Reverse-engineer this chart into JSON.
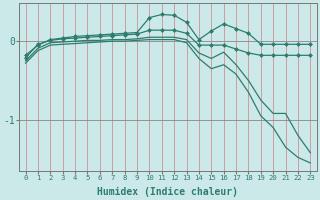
{
  "xlabel": "Humidex (Indice chaleur)",
  "bg_color": "#cce9e9",
  "vgrid_color": "#d09090",
  "hgrid_color": "#888888",
  "line_color": "#2d7d6e",
  "xlim": [
    -0.5,
    23.5
  ],
  "ylim": [
    -1.65,
    0.48
  ],
  "yticks": [
    0,
    -1
  ],
  "xticks": [
    0,
    1,
    2,
    3,
    4,
    5,
    6,
    7,
    8,
    9,
    10,
    11,
    12,
    13,
    14,
    15,
    16,
    17,
    18,
    19,
    20,
    21,
    22,
    23
  ],
  "series": [
    {
      "x": [
        0,
        1,
        2,
        3,
        4,
        5,
        6,
        7,
        8,
        9,
        10,
        11,
        12,
        13,
        14,
        15,
        16,
        17,
        18,
        19,
        20,
        21,
        22,
        23
      ],
      "y": [
        -0.18,
        -0.05,
        0.02,
        0.04,
        0.06,
        0.07,
        0.08,
        0.09,
        0.1,
        0.11,
        0.3,
        0.34,
        0.33,
        0.24,
        0.02,
        0.13,
        0.22,
        0.16,
        0.1,
        -0.04,
        -0.04,
        -0.04,
        -0.04,
        -0.04
      ],
      "marker": true
    },
    {
      "x": [
        0,
        1,
        2,
        3,
        4,
        5,
        6,
        7,
        8,
        9,
        10,
        11,
        12,
        13,
        14,
        15,
        16,
        17,
        18,
        19,
        20,
        21,
        22,
        23
      ],
      "y": [
        -0.21,
        -0.04,
        0.01,
        0.03,
        0.04,
        0.05,
        0.06,
        0.07,
        0.08,
        0.09,
        0.14,
        0.14,
        0.14,
        0.1,
        -0.05,
        -0.05,
        -0.05,
        -0.1,
        -0.15,
        -0.18,
        -0.18,
        -0.18,
        -0.18,
        -0.18
      ],
      "marker": true
    },
    {
      "x": [
        0,
        1,
        2,
        3,
        4,
        5,
        6,
        7,
        8,
        9,
        10,
        11,
        12,
        13,
        14,
        15,
        16,
        17,
        18,
        19,
        20,
        21,
        22,
        23
      ],
      "y": [
        -0.25,
        -0.09,
        -0.02,
        -0.01,
        0.0,
        0.01,
        0.01,
        0.02,
        0.02,
        0.03,
        0.05,
        0.05,
        0.05,
        0.02,
        -0.15,
        -0.22,
        -0.14,
        -0.3,
        -0.5,
        -0.75,
        -0.92,
        -0.92,
        -1.2,
        -1.42
      ],
      "marker": false
    },
    {
      "x": [
        0,
        1,
        2,
        3,
        4,
        5,
        6,
        7,
        8,
        9,
        10,
        11,
        12,
        13,
        14,
        15,
        16,
        17,
        18,
        19,
        20,
        21,
        22,
        23
      ],
      "y": [
        -0.28,
        -0.12,
        -0.05,
        -0.04,
        -0.03,
        -0.02,
        -0.01,
        0.0,
        0.0,
        0.01,
        0.02,
        0.02,
        0.02,
        -0.02,
        -0.22,
        -0.35,
        -0.3,
        -0.42,
        -0.65,
        -0.95,
        -1.1,
        -1.35,
        -1.48,
        -1.55
      ],
      "marker": false
    }
  ]
}
